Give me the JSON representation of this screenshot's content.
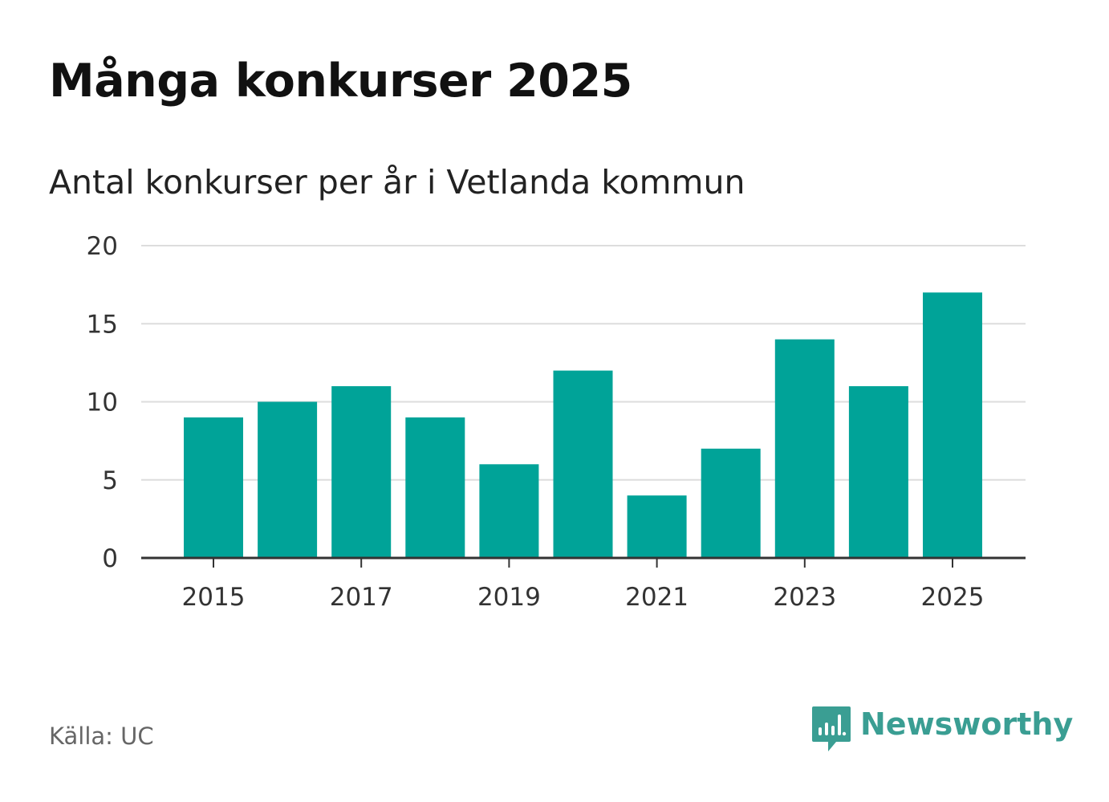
{
  "header": {
    "title": "Många konkurser 2025",
    "subtitle": "Antal konkurser per år i Vetlanda kommun"
  },
  "footer": {
    "source": "Källa: UC",
    "brand": "Newsworthy",
    "brand_icon": "newsworthy-logo-icon"
  },
  "colors": {
    "bar": "#00a398",
    "grid": "#dddddd",
    "axis": "#333333",
    "brand": "#3a9e93"
  },
  "chart_data": {
    "type": "bar",
    "title": "Antal konkurser per år i Vetlanda kommun",
    "xlabel": "",
    "ylabel": "",
    "categories": [
      "2015",
      "2016",
      "2017",
      "2018",
      "2019",
      "2020",
      "2021",
      "2022",
      "2023",
      "2024",
      "2025"
    ],
    "values": [
      9,
      10,
      11,
      9,
      6,
      12,
      4,
      7,
      14,
      11,
      17
    ],
    "ylim": [
      0,
      20
    ],
    "yticks": [
      0,
      5,
      10,
      15,
      20
    ],
    "xticks": [
      "2015",
      "2017",
      "2019",
      "2021",
      "2023",
      "2025"
    ],
    "grid": true,
    "legend": "none"
  }
}
